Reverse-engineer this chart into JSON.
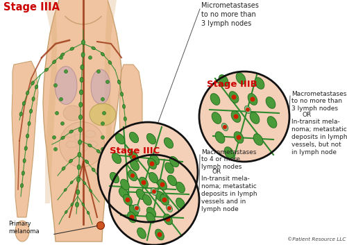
{
  "bg_color": "#ffffff",
  "title_IIIA": "Stage IIIA",
  "title_IIIB": "Stage IIIB",
  "title_IIIC": "Stage IIIC",
  "title_color": "#cc0000",
  "text_color": "#222222",
  "node_color": "#4a9a3a",
  "node_color_light": "#6ab84a",
  "node_edge_color": "#1a6a1a",
  "vessel_color": "#2d8a2d",
  "red_dot_color": "#cc2200",
  "skin_color": "#f0c8a0",
  "skin_dark": "#d8a878",
  "organ_lung": "#c8a0b0",
  "organ_liver": "#d4b870",
  "organ_intestine": "#e8c0a0",
  "artery_color": "#993311",
  "credit_text": "©Patient Resource LLC",
  "primary_melanoma_label": "Primary\nmelanoma",
  "label_IIIA": "Micrometastases\nto no more than\n3 lymph nodes",
  "label_IIIB_line1": "Macrometastases",
  "label_IIIB_line2": "to no more than\n3 lymph nodes",
  "label_IIIB_or": "OR",
  "label_IIIB_rest": "In-transit mela-\nnoma; metastatic\ndeposits in lymph\nvessels, but not\nin lymph node",
  "label_IIIC_line1": "Macrometastases",
  "label_IIIC_line2": "to 4 or more\nlymph nodes",
  "label_IIIC_or": "OR",
  "label_IIIC_rest": "In-transit mela-\nnoma; metastatic\ndeposits in lymph\nvessels and in\nlymph node",
  "fig_width": 5.0,
  "fig_height": 3.53,
  "dpi": 100
}
